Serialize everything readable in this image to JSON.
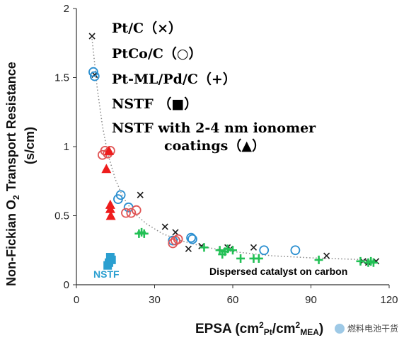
{
  "chart_data": {
    "type": "scatter",
    "xlabel": "EPSA (cm²Pt/cm²MEA)",
    "ylabel": "Non-Fickian O2 Transport Resistance (s/cm)",
    "xlim": [
      0,
      120
    ],
    "ylim": [
      0,
      2
    ],
    "xticks": [
      "0",
      "30",
      "60",
      "90",
      "120"
    ],
    "yticks": [
      "0",
      "0.5",
      "1",
      "1.5",
      "2"
    ],
    "grid": false,
    "legend": [
      {
        "label": "Pt/C（×）",
        "series": "Pt/C"
      },
      {
        "label": "PtCo/C（○）",
        "series": "PtCo/C"
      },
      {
        "label": "Pt-ML/Pd/C（+）",
        "series": "Pt-ML/Pd/C"
      },
      {
        "label": "NSTF （■）",
        "series": "NSTF"
      },
      {
        "label": "NSTF with 2-4 nm ionomer",
        "label2": "coatings（▲）",
        "series": "NSTF with 2-4 nm ionomer coatings"
      }
    ],
    "annotations": [
      "Dispersed catalyst on carbon",
      "NSTF"
    ],
    "trend_curve": [
      [
        6,
        1.78
      ],
      [
        7,
        1.6
      ],
      [
        8,
        1.42
      ],
      [
        10,
        1.15
      ],
      [
        12,
        0.95
      ],
      [
        15,
        0.76
      ],
      [
        18,
        0.63
      ],
      [
        22,
        0.52
      ],
      [
        27,
        0.44
      ],
      [
        33,
        0.37
      ],
      [
        40,
        0.32
      ],
      [
        50,
        0.27
      ],
      [
        60,
        0.24
      ],
      [
        75,
        0.21
      ],
      [
        90,
        0.195
      ],
      [
        105,
        0.185
      ],
      [
        115,
        0.18
      ]
    ],
    "series": [
      {
        "name": "Pt/C",
        "marker": "x",
        "color": "#1a1a1a",
        "points": [
          [
            6,
            1.8
          ],
          [
            7,
            1.52
          ],
          [
            24.5,
            0.65
          ],
          [
            34,
            0.42
          ],
          [
            38,
            0.38
          ],
          [
            43,
            0.26
          ],
          [
            48,
            0.28
          ],
          [
            58,
            0.27
          ],
          [
            59,
            0.26
          ],
          [
            68,
            0.27
          ],
          [
            96,
            0.21
          ],
          [
            110,
            0.17
          ],
          [
            112,
            0.16
          ],
          [
            115,
            0.17
          ]
        ]
      },
      {
        "name": "PtCo/C",
        "marker": "o",
        "color": "#2b8fd0",
        "points": [
          [
            6.5,
            1.54
          ],
          [
            7,
            1.51
          ],
          [
            16,
            0.62
          ],
          [
            17,
            0.65
          ],
          [
            20,
            0.56
          ],
          [
            37,
            0.32
          ],
          [
            44,
            0.34
          ],
          [
            44.5,
            0.33
          ],
          [
            72,
            0.25
          ],
          [
            84,
            0.25
          ]
        ]
      },
      {
        "name": "PtCo/C",
        "marker": "o",
        "color": "#e05555",
        "points": [
          [
            10,
            0.94
          ],
          [
            11,
            0.97
          ],
          [
            12,
            0.95
          ],
          [
            13,
            0.97
          ],
          [
            19,
            0.52
          ],
          [
            21,
            0.52
          ],
          [
            23,
            0.54
          ],
          [
            37,
            0.3
          ],
          [
            38,
            0.32
          ],
          [
            39,
            0.33
          ]
        ]
      },
      {
        "name": "Pt-ML/Pd/C",
        "marker": "+",
        "color": "#22c055",
        "points": [
          [
            24,
            0.37
          ],
          [
            25,
            0.38
          ],
          [
            26,
            0.37
          ],
          [
            49,
            0.27
          ],
          [
            55,
            0.25
          ],
          [
            56,
            0.22
          ],
          [
            57,
            0.24
          ],
          [
            58,
            0.26
          ],
          [
            60,
            0.25
          ],
          [
            63,
            0.19
          ],
          [
            68,
            0.19
          ],
          [
            70,
            0.19
          ],
          [
            93,
            0.18
          ],
          [
            109,
            0.17
          ],
          [
            112,
            0.16
          ],
          [
            113,
            0.17
          ],
          [
            114,
            0.16
          ]
        ]
      },
      {
        "name": "NSTF",
        "marker": "square",
        "color": "#2b9fd0",
        "points": [
          [
            12,
            0.14
          ],
          [
            12.5,
            0.16
          ],
          [
            13,
            0.2
          ],
          [
            13.5,
            0.18
          ]
        ]
      },
      {
        "name": "NSTF with 2-4 nm ionomer coatings",
        "marker": "triangle",
        "color": "#ee1c1c",
        "points": [
          [
            11.5,
            0.84
          ],
          [
            12.5,
            0.97
          ],
          [
            13,
            0.58
          ],
          [
            13,
            0.55
          ],
          [
            13.2,
            0.5
          ]
        ]
      }
    ]
  },
  "watermark": {
    "text": "燃料电池干货",
    "icon": "fuel-cell-logo-icon"
  }
}
